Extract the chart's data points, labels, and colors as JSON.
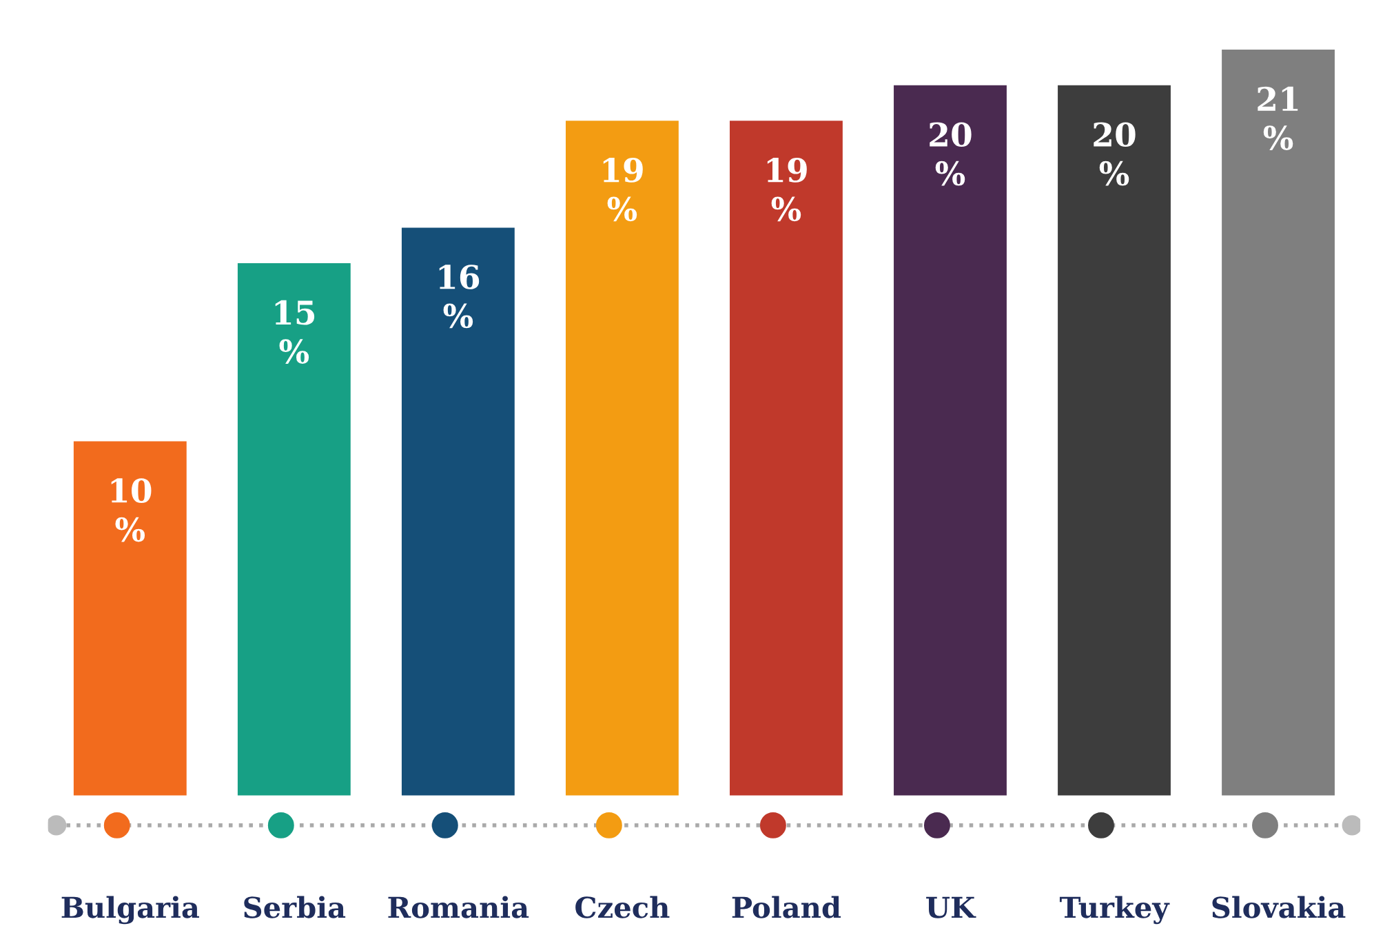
{
  "chart_data": {
    "type": "bar",
    "categories": [
      "Bulgaria",
      "Serbia",
      "Romania",
      "Czech",
      "Poland",
      "UK",
      "Turkey",
      "Slovakia"
    ],
    "values": [
      10,
      15,
      16,
      19,
      19,
      20,
      20,
      21
    ],
    "colors": [
      "#f26b1d",
      "#17a085",
      "#154f78",
      "#f39c12",
      "#c0392b",
      "#4a2a50",
      "#3d3d3d",
      "#7f7f7f"
    ],
    "value_labels": [
      "10\n%",
      "15\n%",
      "16\n%",
      "19\n%",
      "19\n%",
      "20\n%",
      "20\n%",
      "21\n%"
    ]
  }
}
